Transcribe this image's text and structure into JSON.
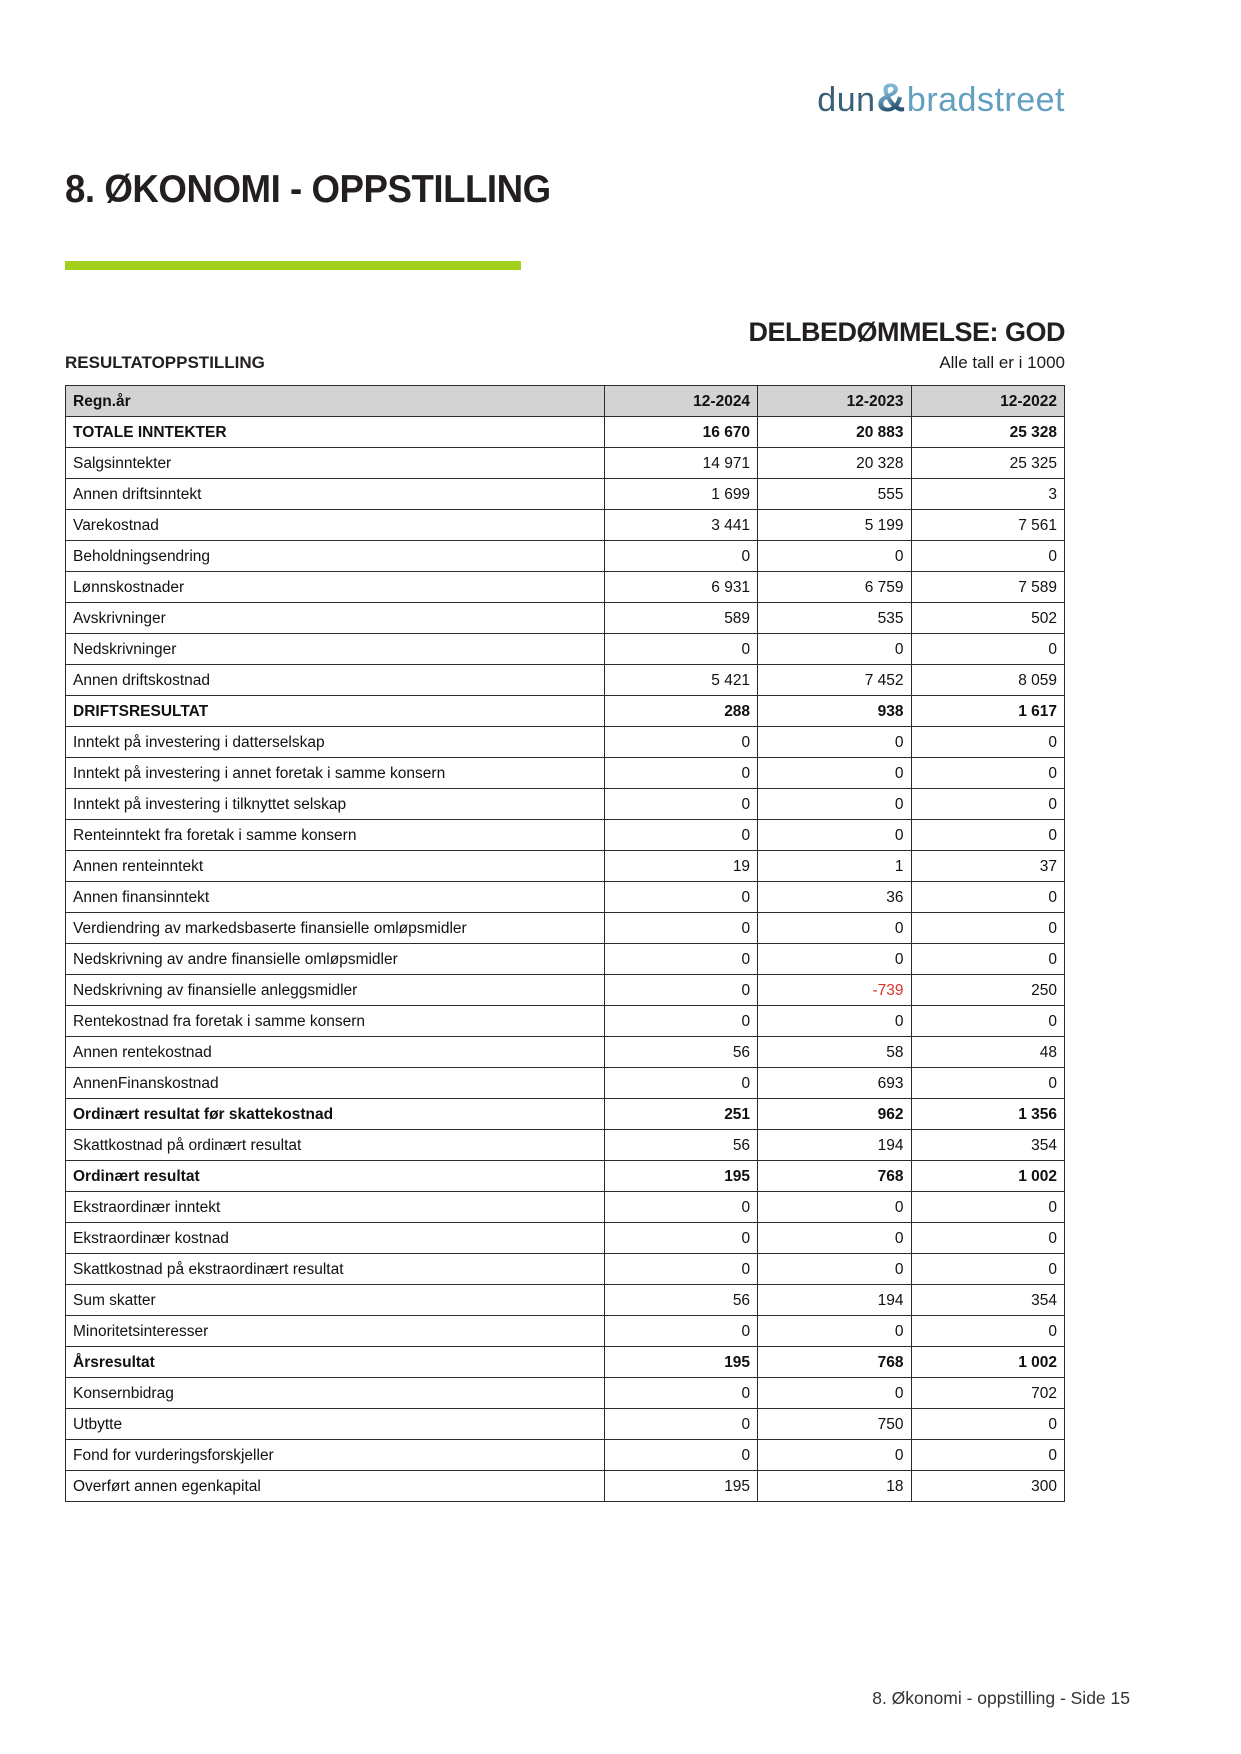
{
  "logo": {
    "part1": "dun",
    "ampersand": "&",
    "part2": "bradstreet"
  },
  "header": {
    "title": "8. ØKONOMI - OPPSTILLING",
    "assessment": "DELBEDØMMELSE: GOD",
    "section_label": "RESULTATOPPSTILLING",
    "units_note": "Alle tall er i 1000"
  },
  "colors": {
    "accent_green": "#a3d01c",
    "logo_dark_blue": "#3a5f77",
    "logo_light_blue": "#639fbf",
    "negative_red": "#e03127",
    "table_header_bg": "#d3d3d3"
  },
  "table": {
    "columns": [
      "Regn.år",
      "12-2024",
      "12-2023",
      "12-2022"
    ],
    "rows": [
      {
        "label": "TOTALE INNTEKTER",
        "bold": true,
        "values": [
          "16 670",
          "20 883",
          "25 328"
        ]
      },
      {
        "label": "Salgsinntekter",
        "bold": false,
        "values": [
          "14 971",
          "20 328",
          "25 325"
        ]
      },
      {
        "label": "Annen driftsinntekt",
        "bold": false,
        "values": [
          "1 699",
          "555",
          "3"
        ]
      },
      {
        "label": "Varekostnad",
        "bold": false,
        "values": [
          "3 441",
          "5 199",
          "7 561"
        ]
      },
      {
        "label": "Beholdningsendring",
        "bold": false,
        "values": [
          "0",
          "0",
          "0"
        ]
      },
      {
        "label": "Lønnskostnader",
        "bold": false,
        "values": [
          "6 931",
          "6 759",
          "7 589"
        ]
      },
      {
        "label": "Avskrivninger",
        "bold": false,
        "values": [
          "589",
          "535",
          "502"
        ]
      },
      {
        "label": "Nedskrivninger",
        "bold": false,
        "values": [
          "0",
          "0",
          "0"
        ]
      },
      {
        "label": "Annen driftskostnad",
        "bold": false,
        "values": [
          "5 421",
          "7 452",
          "8 059"
        ]
      },
      {
        "label": "DRIFTSRESULTAT",
        "bold": true,
        "values": [
          "288",
          "938",
          "1 617"
        ]
      },
      {
        "label": "Inntekt på investering i datterselskap",
        "bold": false,
        "values": [
          "0",
          "0",
          "0"
        ]
      },
      {
        "label": "Inntekt på investering i annet foretak i samme konsern",
        "bold": false,
        "values": [
          "0",
          "0",
          "0"
        ]
      },
      {
        "label": "Inntekt på investering i tilknyttet selskap",
        "bold": false,
        "values": [
          "0",
          "0",
          "0"
        ]
      },
      {
        "label": "Renteinntekt fra foretak i samme konsern",
        "bold": false,
        "values": [
          "0",
          "0",
          "0"
        ]
      },
      {
        "label": "Annen renteinntekt",
        "bold": false,
        "values": [
          "19",
          "1",
          "37"
        ]
      },
      {
        "label": "Annen finansinntekt",
        "bold": false,
        "values": [
          "0",
          "36",
          "0"
        ]
      },
      {
        "label": "Verdiendring av markedsbaserte finansielle omløpsmidler",
        "bold": false,
        "values": [
          "0",
          "0",
          "0"
        ]
      },
      {
        "label": "Nedskrivning av andre finansielle omløpsmidler",
        "bold": false,
        "values": [
          "0",
          "0",
          "0"
        ]
      },
      {
        "label": "Nedskrivning av finansielle anleggsmidler",
        "bold": false,
        "values": [
          "0",
          "-739",
          "250"
        ]
      },
      {
        "label": "Rentekostnad fra foretak i samme konsern",
        "bold": false,
        "values": [
          "0",
          "0",
          "0"
        ]
      },
      {
        "label": "Annen rentekostnad",
        "bold": false,
        "values": [
          "56",
          "58",
          "48"
        ]
      },
      {
        "label": "AnnenFinanskostnad",
        "bold": false,
        "values": [
          "0",
          "693",
          "0"
        ]
      },
      {
        "label": "Ordinært resultat før skattekostnad",
        "bold": true,
        "values": [
          "251",
          "962",
          "1 356"
        ]
      },
      {
        "label": "Skattkostnad på ordinært resultat",
        "bold": false,
        "values": [
          "56",
          "194",
          "354"
        ]
      },
      {
        "label": "Ordinært resultat",
        "bold": true,
        "values": [
          "195",
          "768",
          "1 002"
        ]
      },
      {
        "label": "Ekstraordinær inntekt",
        "bold": false,
        "values": [
          "0",
          "0",
          "0"
        ]
      },
      {
        "label": "Ekstraordinær kostnad",
        "bold": false,
        "values": [
          "0",
          "0",
          "0"
        ]
      },
      {
        "label": "Skattkostnad på ekstraordinært resultat",
        "bold": false,
        "values": [
          "0",
          "0",
          "0"
        ]
      },
      {
        "label": "Sum skatter",
        "bold": false,
        "values": [
          "56",
          "194",
          "354"
        ]
      },
      {
        "label": "Minoritetsinteresser",
        "bold": false,
        "values": [
          "0",
          "0",
          "0"
        ]
      },
      {
        "label": "Årsresultat",
        "bold": true,
        "values": [
          "195",
          "768",
          "1 002"
        ]
      },
      {
        "label": "Konsernbidrag",
        "bold": false,
        "values": [
          "0",
          "0",
          "702"
        ]
      },
      {
        "label": "Utbytte",
        "bold": false,
        "values": [
          "0",
          "750",
          "0"
        ]
      },
      {
        "label": "Fond for vurderingsforskjeller",
        "bold": false,
        "values": [
          "0",
          "0",
          "0"
        ]
      },
      {
        "label": "Overført annen egenkapital",
        "bold": false,
        "values": [
          "195",
          "18",
          "300"
        ]
      }
    ]
  },
  "footer": {
    "text": "8. Økonomi - oppstilling - Side 15"
  }
}
